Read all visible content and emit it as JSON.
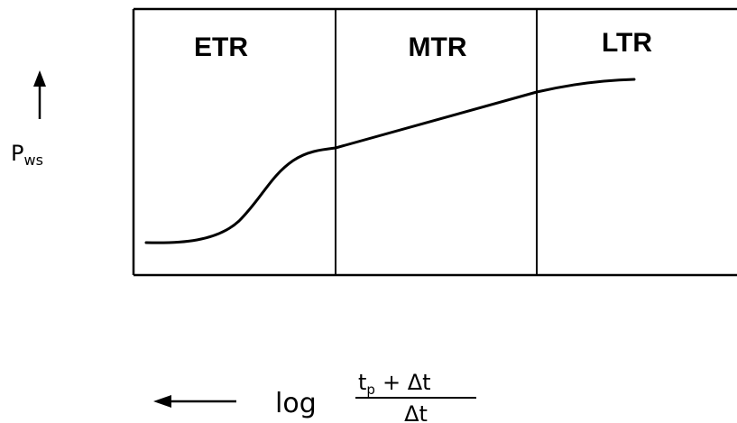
{
  "diagram": {
    "regions": [
      {
        "label": "ETR"
      },
      {
        "label": "MTR"
      },
      {
        "label": "LTR"
      }
    ],
    "y_axis": {
      "symbol": "P",
      "subscript": "ws"
    },
    "x_axis": {
      "function": "log",
      "numerator_main": "t",
      "numerator_sub": "p",
      "numerator_rest": "+ Δt",
      "denominator": "Δt"
    }
  }
}
